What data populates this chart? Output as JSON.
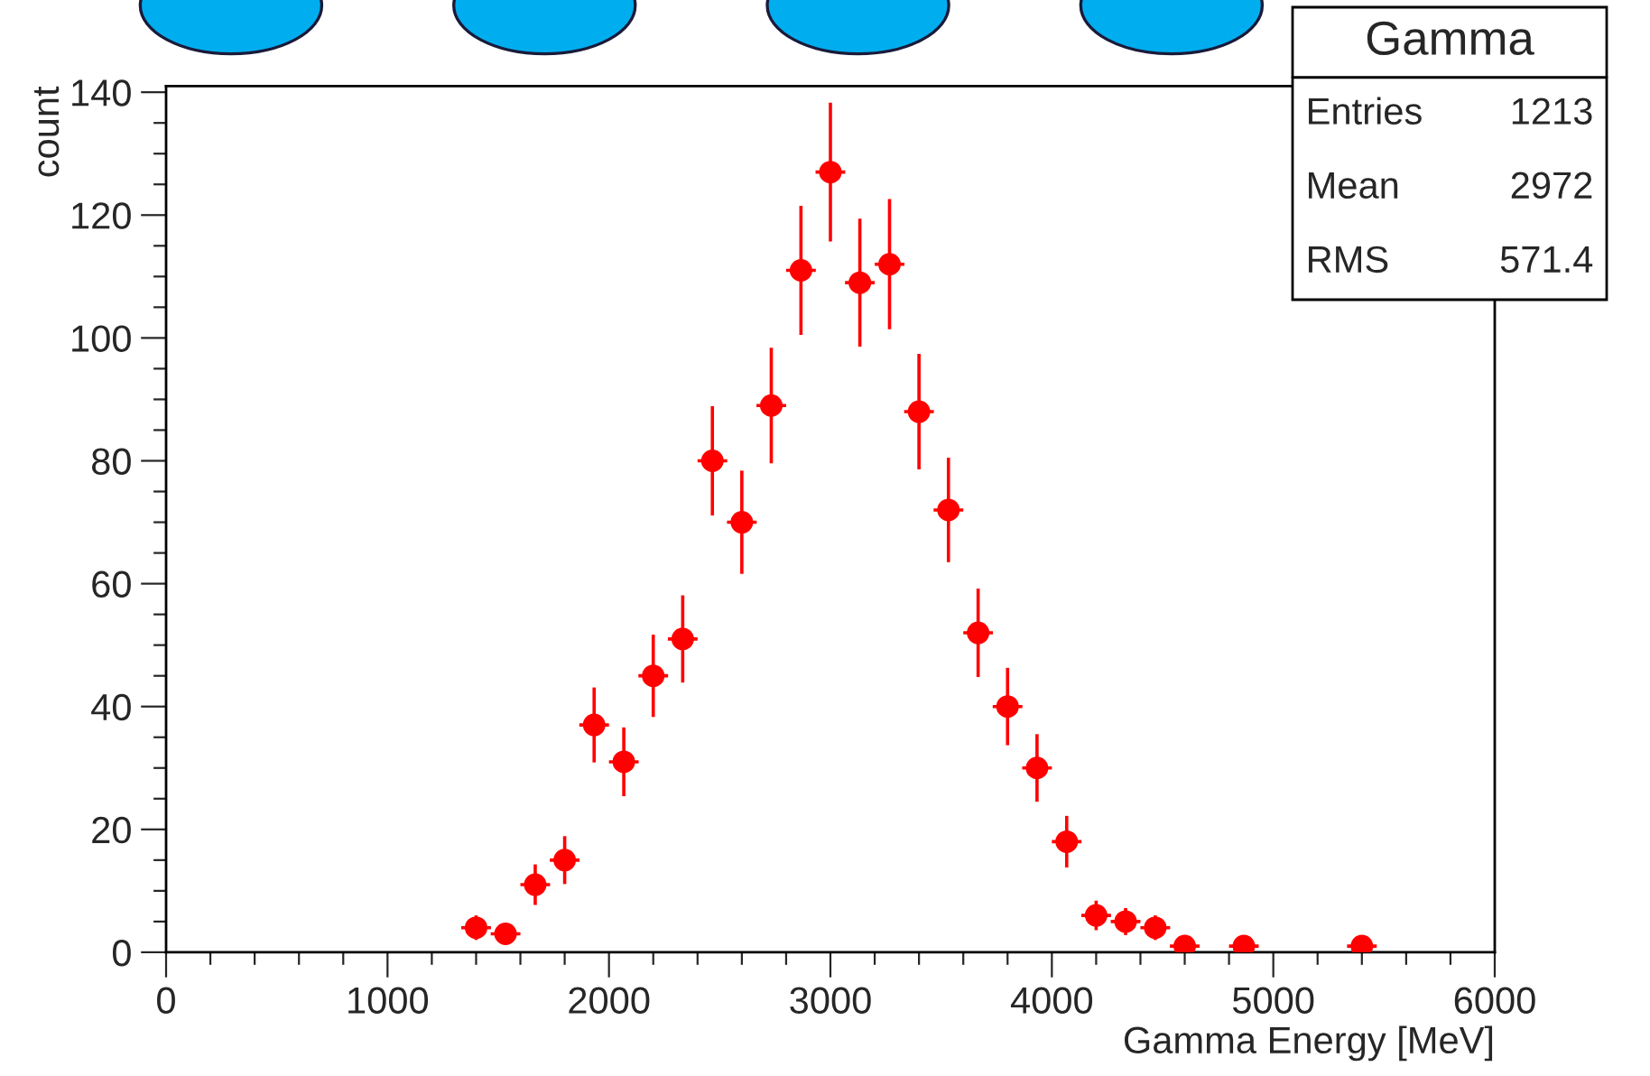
{
  "chart_data": {
    "type": "scatter",
    "xlabel": "Gamma Energy [MeV]",
    "ylabel": "count",
    "x": [
      1400,
      1533,
      1667,
      1800,
      1933,
      2067,
      2200,
      2333,
      2467,
      2600,
      2733,
      2867,
      3000,
      3133,
      3267,
      3400,
      3533,
      3667,
      3800,
      3933,
      4067,
      4200,
      4333,
      4467,
      4600,
      4867,
      5400
    ],
    "series": [
      {
        "color": "#ff0000",
        "values": [
          4,
          3,
          11,
          15,
          37,
          31,
          45,
          51,
          80,
          70,
          89,
          111,
          127,
          109,
          112,
          88,
          72,
          52,
          40,
          30,
          18,
          6,
          5,
          4,
          1,
          1,
          1
        ],
        "errors": [
          2,
          1.7,
          3.3,
          3.9,
          6.1,
          5.6,
          6.7,
          7.1,
          8.9,
          8.4,
          9.4,
          10.5,
          11.3,
          10.4,
          10.6,
          9.4,
          8.5,
          7.2,
          6.3,
          5.5,
          4.2,
          2.4,
          2.2,
          2,
          null,
          null,
          null
        ],
        "xerrors": [
          67,
          67,
          67,
          67,
          67,
          67,
          67,
          67,
          67,
          67,
          67,
          67,
          67,
          67,
          67,
          67,
          67,
          67,
          67,
          67,
          67,
          67,
          67,
          67,
          67,
          67,
          67
        ]
      }
    ],
    "marker": "circle",
    "xlim": [
      0,
      6000
    ],
    "xticks": [
      0,
      {
        "value": 200,
        "label": null
      },
      {
        "value": 400,
        "label": null
      },
      {
        "value": 600,
        "label": null
      },
      {
        "value": 800,
        "label": null
      },
      1000,
      {
        "value": 1200,
        "label": null
      },
      {
        "value": 1400,
        "label": null
      },
      {
        "value": 1600,
        "label": null
      },
      {
        "value": 1800,
        "label": null
      },
      2000,
      {
        "value": 2200,
        "label": null
      },
      {
        "value": 2400,
        "label": null
      },
      {
        "value": 2600,
        "label": null
      },
      {
        "value": 2800,
        "label": null
      },
      3000,
      {
        "value": 3200,
        "label": null
      },
      {
        "value": 3400,
        "label": null
      },
      {
        "value": 3600,
        "label": null
      },
      {
        "value": 3800,
        "label": null
      },
      4000,
      {
        "value": 4200,
        "label": null
      },
      {
        "value": 4400,
        "label": null
      },
      {
        "value": 4600,
        "label": null
      },
      {
        "value": 4800,
        "label": null
      },
      5000,
      {
        "value": 5200,
        "label": null
      },
      {
        "value": 5400,
        "label": null
      },
      {
        "value": 5600,
        "label": null
      },
      {
        "value": 5800,
        "label": null
      },
      6000
    ],
    "ylim": [
      0,
      141
    ],
    "yticks": [
      0,
      {
        "value": 5,
        "label": null
      },
      {
        "value": 10,
        "label": null
      },
      {
        "value": 15,
        "label": null
      },
      20,
      {
        "value": 25,
        "label": null
      },
      {
        "value": 30,
        "label": null
      },
      {
        "value": 35,
        "label": null
      },
      40,
      {
        "value": 45,
        "label": null
      },
      {
        "value": 50,
        "label": null
      },
      {
        "value": 55,
        "label": null
      },
      60,
      {
        "value": 65,
        "label": null
      },
      {
        "value": 70,
        "label": null
      },
      {
        "value": 75,
        "label": null
      },
      80,
      {
        "value": 85,
        "label": null
      },
      {
        "value": 90,
        "label": null
      },
      {
        "value": 95,
        "label": null
      },
      100,
      {
        "value": 105,
        "label": null
      },
      {
        "value": 110,
        "label": null
      },
      {
        "value": 115,
        "label": null
      },
      120,
      {
        "value": 125,
        "label": null
      },
      {
        "value": 130,
        "label": null
      },
      {
        "value": 135,
        "label": null
      },
      140
    ],
    "grid": false,
    "annotations": [
      "Gamma",
      "Entries",
      "1213",
      "Mean",
      "2972",
      "RMS",
      "571.4"
    ]
  }
}
